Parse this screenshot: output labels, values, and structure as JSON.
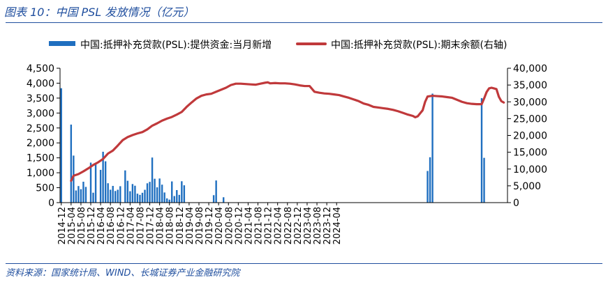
{
  "header": {
    "title": "图表 10：中国 PSL 发放情况（亿元）"
  },
  "footer": {
    "source": "资料来源：国家统计局、WIND、长城证券产业金融研究院"
  },
  "colors": {
    "bar": "#1f6fc0",
    "line": "#c0393b",
    "accent": "#1f4e9e"
  },
  "chart_data": {
    "type": "bar",
    "title": "",
    "legend": {
      "placement": "top",
      "entries": [
        "中国:抵押补充贷款(PSL):提供资金:当月新增",
        "中国:抵押补充贷款(PSL):期末余额(右轴)"
      ]
    },
    "grid": false,
    "xlabel": "",
    "ylabel": "",
    "y2label": "",
    "ylim": [
      0,
      4500
    ],
    "y2lim": [
      0,
      40000
    ],
    "yticks": [
      "0",
      "500",
      "1,000",
      "1,500",
      "2,000",
      "2,500",
      "3,000",
      "3,500",
      "4,000",
      "4,500"
    ],
    "y2ticks": [
      "0",
      "5,000",
      "10,000",
      "15,000",
      "20,000",
      "25,000",
      "30,000",
      "35,000",
      "40,000"
    ],
    "x_start": "2014-12",
    "x_tick_labels": [
      "2014-12",
      "2015-04",
      "2015-08",
      "2015-12",
      "2016-04",
      "2016-08",
      "2016-12",
      "2017-04",
      "2017-08",
      "2017-12",
      "2018-04",
      "2018-08",
      "2018-12",
      "2019-04",
      "2019-08",
      "2019-12",
      "2020-04",
      "2020-08",
      "2020-12",
      "2021-04",
      "2021-08",
      "2021-12",
      "2022-04",
      "2022-08",
      "2022-12",
      "2023-04",
      "2023-08",
      "2023-12",
      "2024-04"
    ],
    "series": [
      {
        "name": "中国:抵押补充贷款(PSL):提供资金:当月新增",
        "kind": "bar",
        "axis": "left",
        "values": [
          3831,
          0,
          0,
          0,
          2613,
          1575,
          407,
          555,
          450,
          700,
          527,
          0,
          1340,
          332,
          1300,
          0,
          1097,
          1704,
          1384,
          649,
          432,
          560,
          390,
          432,
          550,
          0,
          1079,
          732,
          382,
          622,
          566,
          300,
          260,
          330,
          430,
          647,
          695,
          1510,
          800,
          512,
          808,
          602,
          340,
          142,
          100,
          710,
          220,
          420,
          260,
          716,
          580,
          0,
          0,
          0,
          0,
          0,
          0,
          0,
          0,
          0,
          0,
          0,
          250,
          742,
          0,
          0,
          180,
          0,
          0,
          0,
          0,
          0,
          0,
          0,
          0,
          0,
          0,
          0,
          0,
          0,
          0,
          0,
          0,
          0,
          0,
          0,
          0,
          0,
          0,
          0,
          0,
          0,
          0,
          0,
          0,
          0,
          0,
          0,
          0,
          0,
          0,
          0,
          0,
          0,
          0,
          0,
          0,
          0,
          0,
          0,
          0,
          0,
          0,
          0,
          0,
          0,
          0,
          0,
          0,
          0,
          0,
          0,
          0,
          0,
          0,
          0,
          0,
          0,
          0,
          0,
          0,
          0,
          0,
          0,
          0,
          0,
          0,
          0,
          0,
          0,
          0,
          0,
          0,
          0,
          0,
          0,
          0,
          0,
          0,
          1060,
          1520,
          3650,
          0,
          0,
          0,
          0,
          0,
          0,
          0,
          0,
          0,
          0,
          0,
          0,
          0,
          0,
          0,
          0,
          0,
          0,
          0,
          3500,
          1500,
          0,
          0,
          0,
          0
        ]
      },
      {
        "name": "中国:抵押补充贷款(PSL):期末余额(右轴)",
        "kind": "line",
        "axis": "right",
        "points": [
          [
            4,
            6500
          ],
          [
            5,
            8000
          ],
          [
            7,
            8500
          ],
          [
            9,
            9300
          ],
          [
            11,
            10200
          ],
          [
            13,
            11200
          ],
          [
            15,
            12000
          ],
          [
            17,
            13000
          ],
          [
            19,
            14600
          ],
          [
            21,
            15500
          ],
          [
            23,
            17000
          ],
          [
            25,
            18600
          ],
          [
            27,
            19500
          ],
          [
            29,
            20100
          ],
          [
            31,
            20600
          ],
          [
            33,
            21000
          ],
          [
            35,
            21800
          ],
          [
            37,
            22900
          ],
          [
            39,
            23600
          ],
          [
            41,
            24400
          ],
          [
            43,
            25000
          ],
          [
            45,
            25500
          ],
          [
            47,
            26200
          ],
          [
            49,
            27000
          ],
          [
            51,
            28500
          ],
          [
            53,
            29800
          ],
          [
            55,
            31000
          ],
          [
            57,
            31800
          ],
          [
            59,
            32200
          ],
          [
            61,
            32400
          ],
          [
            63,
            33000
          ],
          [
            65,
            33600
          ],
          [
            67,
            34200
          ],
          [
            69,
            35000
          ],
          [
            71,
            35400
          ],
          [
            73,
            35400
          ],
          [
            75,
            35300
          ],
          [
            77,
            35200
          ],
          [
            79,
            35100
          ],
          [
            81,
            35400
          ],
          [
            83,
            35700
          ],
          [
            84,
            35800
          ],
          [
            85,
            35500
          ],
          [
            87,
            35600
          ],
          [
            89,
            35500
          ],
          [
            91,
            35500
          ],
          [
            93,
            35400
          ],
          [
            95,
            35200
          ],
          [
            97,
            34900
          ],
          [
            99,
            34700
          ],
          [
            101,
            34700
          ],
          [
            103,
            33000
          ],
          [
            105,
            32700
          ],
          [
            107,
            32500
          ],
          [
            109,
            32400
          ],
          [
            111,
            32200
          ],
          [
            113,
            32000
          ],
          [
            115,
            31600
          ],
          [
            117,
            31200
          ],
          [
            119,
            30700
          ],
          [
            121,
            30200
          ],
          [
            123,
            29500
          ],
          [
            125,
            29100
          ],
          [
            127,
            28500
          ],
          [
            129,
            28300
          ],
          [
            131,
            28100
          ],
          [
            133,
            27900
          ],
          [
            135,
            27600
          ],
          [
            137,
            27200
          ],
          [
            139,
            26700
          ],
          [
            141,
            26200
          ],
          [
            143,
            25800
          ],
          [
            144,
            25400
          ],
          [
            145,
            25700
          ],
          [
            147,
            27500
          ],
          [
            148,
            30000
          ],
          [
            149,
            31600
          ],
          [
            151,
            31800
          ],
          [
            153,
            31700
          ],
          [
            155,
            31600
          ],
          [
            157,
            31400
          ],
          [
            159,
            31200
          ],
          [
            161,
            30600
          ],
          [
            163,
            30000
          ],
          [
            165,
            29600
          ],
          [
            167,
            29400
          ],
          [
            169,
            29300
          ],
          [
            171,
            29300
          ],
          [
            172,
            31000
          ],
          [
            173,
            32900
          ],
          [
            174,
            34000
          ],
          [
            175,
            34200
          ],
          [
            176,
            34000
          ],
          [
            177,
            33800
          ],
          [
            178,
            31500
          ],
          [
            179,
            30200
          ],
          [
            180,
            29800
          ]
        ]
      }
    ]
  }
}
